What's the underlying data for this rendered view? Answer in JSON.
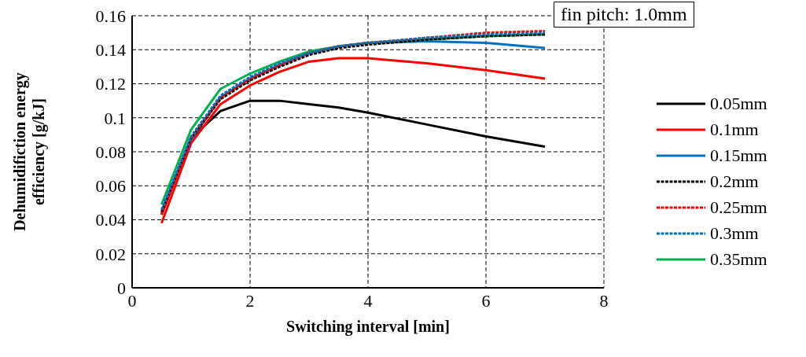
{
  "chart_data": {
    "type": "line",
    "xlabel": "Switching interval [min]",
    "ylabel": "Dehumidifiction energy efficiency [g/kJ]",
    "x": [
      0.5,
      1,
      1.5,
      2,
      2.5,
      3,
      3.5,
      4,
      5,
      6,
      7
    ],
    "xlim": [
      0,
      8
    ],
    "xticks": [
      0,
      2,
      4,
      6,
      8
    ],
    "ylim": [
      0,
      0.16
    ],
    "yticks": [
      0,
      0.02,
      0.04,
      0.06,
      0.08,
      0.1,
      0.12,
      0.14,
      0.16
    ],
    "grid": true,
    "legend": "right",
    "marker": "none",
    "annotations": [
      "fin pitch: 1.0mm"
    ],
    "series": [
      {
        "name": "0.05mm",
        "color": "#000000",
        "line_style": "solid",
        "values": [
          0.043,
          0.088,
          0.104,
          0.11,
          0.11,
          0.108,
          0.106,
          0.103,
          0.096,
          0.089,
          0.083
        ]
      },
      {
        "name": "0.1mm",
        "color": "#ff0000",
        "line_style": "solid",
        "values": [
          0.038,
          0.085,
          0.108,
          0.119,
          0.127,
          0.133,
          0.135,
          0.135,
          0.132,
          0.128,
          0.123
        ]
      },
      {
        "name": "0.15mm",
        "color": "#0070c0",
        "line_style": "solid",
        "values": [
          0.045,
          0.087,
          0.112,
          0.123,
          0.131,
          0.138,
          0.142,
          0.144,
          0.145,
          0.144,
          0.141
        ]
      },
      {
        "name": "0.2mm",
        "color": "#000000",
        "line_style": "dashed",
        "values": [
          0.044,
          0.088,
          0.111,
          0.122,
          0.13,
          0.137,
          0.141,
          0.143,
          0.146,
          0.148,
          0.149
        ]
      },
      {
        "name": "0.25mm",
        "color": "#ff0000",
        "line_style": "dashed",
        "values": [
          0.043,
          0.088,
          0.112,
          0.123,
          0.131,
          0.138,
          0.142,
          0.144,
          0.147,
          0.15,
          0.151
        ]
      },
      {
        "name": "0.3mm",
        "color": "#0070c0",
        "line_style": "dashed",
        "values": [
          0.046,
          0.089,
          0.113,
          0.124,
          0.132,
          0.138,
          0.142,
          0.144,
          0.147,
          0.149,
          0.15
        ]
      },
      {
        "name": "0.35mm",
        "color": "#00b050",
        "line_style": "solid",
        "values": [
          0.049,
          0.093,
          0.117,
          0.126,
          0.133,
          0.139,
          0.142,
          0.144,
          0.146,
          0.148,
          0.149
        ]
      }
    ]
  }
}
